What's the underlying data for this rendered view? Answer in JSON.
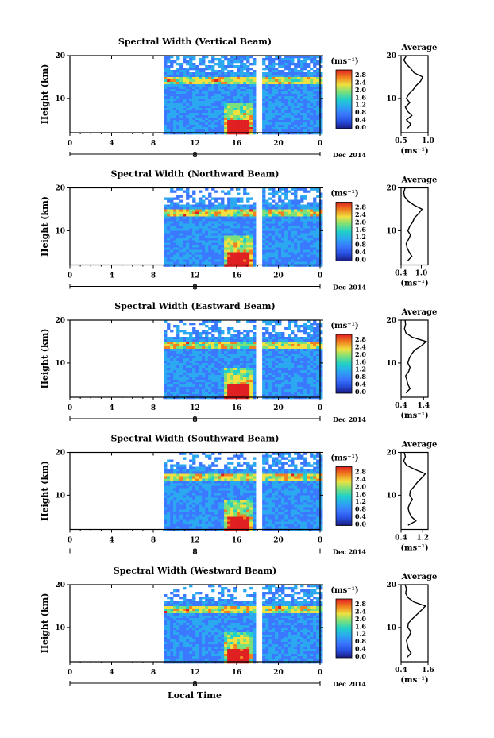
{
  "figure": {
    "date_label": "Dec 2014",
    "xlabel_bottom": "Local Time",
    "colorbar_unit": "(ms⁻¹)",
    "colorbar_ticks": [
      "2.8",
      "2.4",
      "2.0",
      "1.6",
      "1.2",
      "0.8",
      "0.4",
      "0.0"
    ],
    "colorbar_colors": [
      "#1a1a80",
      "#2850e0",
      "#3a78ff",
      "#2aa8f0",
      "#22d0c8",
      "#7ae07a",
      "#f0e040",
      "#f08020",
      "#e02020"
    ],
    "profile_title": "Average",
    "profile_xunit": "(ms⁻¹)",
    "day_label": "8"
  },
  "chart_data": [
    {
      "type": "heatmap",
      "title": "Spectral Width (Vertical Beam)",
      "ylabel": "Height (km)",
      "xticks": [
        "0",
        "4",
        "8",
        "12",
        "16",
        "20",
        "0"
      ],
      "yticks": [
        "20",
        "10"
      ],
      "xlim": [
        0,
        24
      ],
      "ylim": [
        2,
        20
      ],
      "data_start_hour": 9,
      "gap_hours": [
        17.7,
        18.2
      ],
      "profile": {
        "xlim": [
          0.5,
          1.0
        ],
        "xticks": [
          "0.5",
          "1.0"
        ],
        "heights": [
          3,
          4,
          5,
          6,
          7,
          8,
          9,
          10,
          11,
          12,
          13,
          14,
          15,
          16,
          17,
          18,
          19,
          20
        ],
        "values": [
          0.62,
          0.68,
          0.6,
          0.7,
          0.62,
          0.58,
          0.66,
          0.6,
          0.64,
          0.72,
          0.78,
          0.86,
          0.9,
          0.74,
          0.68,
          0.6,
          0.55,
          0.6
        ]
      }
    },
    {
      "type": "heatmap",
      "title": "Spectral Width (Northward Beam)",
      "ylabel": "Height (km)",
      "xticks": [
        "0",
        "4",
        "8",
        "12",
        "16",
        "20",
        "0"
      ],
      "yticks": [
        "20",
        "10"
      ],
      "xlim": [
        0,
        24
      ],
      "ylim": [
        2,
        20
      ],
      "data_start_hour": 9,
      "gap_hours": [
        17.7,
        18.2
      ],
      "profile": {
        "xlim": [
          0.4,
          1.2
        ],
        "xticks": [
          "0.4",
          "1.0"
        ],
        "heights": [
          3,
          4,
          5,
          6,
          7,
          8,
          9,
          10,
          11,
          12,
          13,
          14,
          15,
          16,
          17,
          18,
          19,
          20
        ],
        "values": [
          0.6,
          0.72,
          0.64,
          0.58,
          0.55,
          0.62,
          0.68,
          0.6,
          0.66,
          0.74,
          0.8,
          0.92,
          1.02,
          0.78,
          0.6,
          0.5,
          0.48,
          0.52
        ]
      }
    },
    {
      "type": "heatmap",
      "title": "Spectral Width (Eastward Beam)",
      "ylabel": "Height (km)",
      "xticks": [
        "0",
        "4",
        "8",
        "12",
        "16",
        "20",
        "0"
      ],
      "yticks": [
        "20",
        "10"
      ],
      "xlim": [
        0,
        24
      ],
      "ylim": [
        2,
        20
      ],
      "data_start_hour": 9,
      "gap_hours": [
        17.7,
        18.2
      ],
      "profile": {
        "xlim": [
          0.4,
          1.6
        ],
        "xticks": [
          "0.4",
          "1.4"
        ],
        "heights": [
          3,
          4,
          5,
          6,
          7,
          8,
          9,
          10,
          11,
          12,
          13,
          14,
          15,
          16,
          17,
          18,
          19,
          20
        ],
        "values": [
          0.62,
          0.8,
          0.7,
          0.66,
          0.6,
          0.74,
          0.8,
          0.7,
          0.76,
          0.86,
          1.0,
          1.3,
          1.52,
          0.9,
          0.62,
          0.55,
          0.6,
          0.58
        ]
      }
    },
    {
      "type": "heatmap",
      "title": "Spectral Width (Southward Beam)",
      "ylabel": "Height (km)",
      "xticks": [
        "0",
        "4",
        "8",
        "12",
        "16",
        "20",
        "0"
      ],
      "yticks": [
        "20",
        "10"
      ],
      "xlim": [
        0,
        24
      ],
      "ylim": [
        2,
        20
      ],
      "data_start_hour": 9,
      "gap_hours": [
        17.7,
        18.2
      ],
      "profile": {
        "xlim": [
          0.4,
          1.4
        ],
        "xticks": [
          "0.4",
          "1.2"
        ],
        "heights": [
          3,
          4,
          5,
          6,
          7,
          8,
          9,
          10,
          11,
          12,
          13,
          14,
          15,
          16,
          17,
          18,
          19,
          20
        ],
        "values": [
          0.66,
          0.95,
          0.78,
          0.7,
          0.66,
          0.72,
          0.82,
          0.72,
          0.74,
          0.88,
          1.0,
          1.16,
          1.3,
          0.92,
          0.6,
          0.5,
          0.56,
          0.52
        ]
      }
    },
    {
      "type": "heatmap",
      "title": "Spectral Width (Westward Beam)",
      "ylabel": "Height (km)",
      "xticks": [
        "0",
        "4",
        "8",
        "12",
        "16",
        "20",
        "0"
      ],
      "yticks": [
        "20",
        "10"
      ],
      "xlim": [
        0,
        24
      ],
      "ylim": [
        2,
        20
      ],
      "data_start_hour": 9,
      "gap_hours": [
        17.7,
        18.2
      ],
      "profile": {
        "xlim": [
          0.4,
          1.6
        ],
        "xticks": [
          "0.4",
          "1.6"
        ],
        "heights": [
          3,
          4,
          5,
          6,
          7,
          8,
          9,
          10,
          11,
          12,
          13,
          14,
          15,
          16,
          17,
          18,
          19,
          20
        ],
        "values": [
          0.66,
          0.84,
          0.72,
          0.68,
          0.64,
          0.76,
          0.84,
          0.7,
          0.72,
          0.9,
          1.1,
          1.3,
          1.48,
          0.96,
          0.7,
          0.6,
          0.64,
          0.58
        ]
      }
    }
  ]
}
